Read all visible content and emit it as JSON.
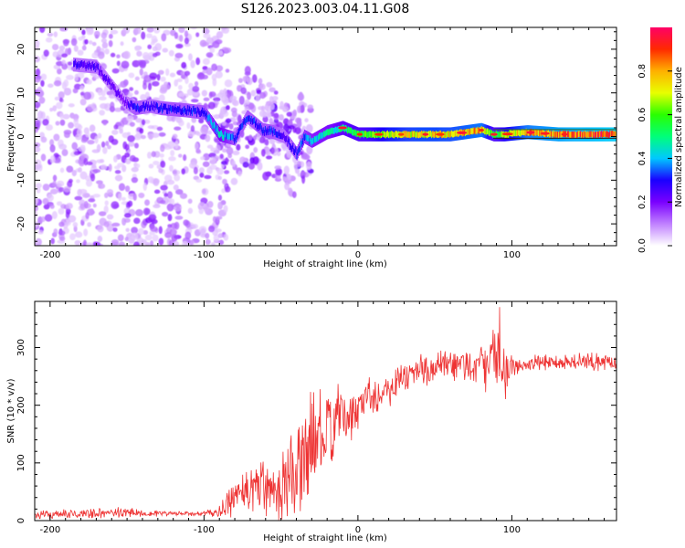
{
  "title": "S126.2023.003.04.11.G08",
  "chart_data": [
    {
      "type": "heatmap",
      "title": "S126.2023.003.04.11.G08",
      "xlabel": "Height of straight line (km)",
      "ylabel": "Frequency (Hz)",
      "xlim": [
        -210,
        168
      ],
      "ylim": [
        -25,
        25
      ],
      "xticks": [
        -200,
        -100,
        0,
        100
      ],
      "xtick_labels": [
        "-200",
        "-100",
        "0",
        "100"
      ],
      "yticks": [
        -20,
        -10,
        0,
        10,
        20
      ],
      "ytick_labels": [
        "-20",
        "-10",
        "0",
        "10",
        "20"
      ],
      "colorbar": {
        "label": "Normalized spectral amplitude",
        "range": [
          0,
          1
        ],
        "ticks": [
          0.0,
          0.2,
          0.4,
          0.6,
          0.8
        ],
        "tick_labels": [
          "0.0",
          "0.2",
          "0.4",
          "0.6",
          "0.8"
        ],
        "colors": [
          "#ffffff",
          "#c080ff",
          "#7a00ff",
          "#1a00ff",
          "#00c8ff",
          "#00ff7a",
          "#2aff00",
          "#e8ff00",
          "#ffb000",
          "#ff2a00",
          "#ff0066"
        ]
      },
      "ridge": {
        "x": [
          -185,
          -170,
          -152,
          -145,
          -135,
          -128,
          -112,
          -100,
          -90,
          -80,
          -72,
          -62,
          -55,
          -48,
          -40,
          -35,
          -30,
          -20,
          -10,
          0,
          20,
          40,
          60,
          80,
          88,
          95,
          110,
          130,
          168
        ],
        "y": [
          16.5,
          16,
          8,
          6.5,
          7,
          6.5,
          6,
          5.5,
          0.5,
          -0.5,
          4.5,
          1.5,
          1,
          0,
          -4,
          0,
          -1,
          1,
          2,
          0.5,
          0.5,
          0.5,
          0.5,
          1.5,
          0.5,
          0.5,
          1,
          0.5,
          0.5
        ],
        "amplitude": [
          0.25,
          0.25,
          0.2,
          0.3,
          0.25,
          0.3,
          0.3,
          0.3,
          0.45,
          0.3,
          0.3,
          0.3,
          0.3,
          0.25,
          0.3,
          0.35,
          0.4,
          0.45,
          0.5,
          0.55,
          0.7,
          0.75,
          0.75,
          0.8,
          0.55,
          0.65,
          0.8,
          0.85,
          0.9
        ]
      },
      "noise_region_km": [
        -210,
        -90
      ]
    },
    {
      "type": "line",
      "xlabel": "Height of straight line (km)",
      "ylabel": "SNR (10 * v/v)",
      "xlim": [
        -210,
        168
      ],
      "ylim": [
        0,
        380
      ],
      "xticks": [
        -200,
        -100,
        0,
        100
      ],
      "xtick_labels": [
        "-200",
        "-100",
        "0",
        "100"
      ],
      "yticks": [
        0,
        100,
        200,
        300
      ],
      "ytick_labels": [
        "0",
        "100",
        "200",
        "300"
      ],
      "line_color": "#ee3333",
      "series": [
        {
          "name": "SNR",
          "x": [
            -210,
            -200,
            -180,
            -160,
            -150,
            -140,
            -120,
            -100,
            -90,
            -85,
            -80,
            -75,
            -70,
            -65,
            -60,
            -55,
            -50,
            -45,
            -40,
            -35,
            -30,
            -25,
            -20,
            -15,
            -10,
            -5,
            0,
            5,
            10,
            15,
            20,
            30,
            40,
            50,
            60,
            70,
            80,
            85,
            90,
            92,
            95,
            100,
            110,
            120,
            140,
            168
          ],
          "values": [
            10,
            10,
            12,
            13,
            15,
            13,
            12,
            12,
            15,
            25,
            40,
            60,
            55,
            60,
            65,
            60,
            55,
            75,
            80,
            100,
            140,
            150,
            140,
            175,
            180,
            175,
            195,
            215,
            225,
            215,
            230,
            250,
            260,
            265,
            265,
            270,
            270,
            265,
            290,
            310,
            260,
            265,
            270,
            275,
            275,
            275
          ],
          "spread": [
            8,
            8,
            10,
            10,
            12,
            8,
            5,
            5,
            12,
            25,
            40,
            50,
            50,
            60,
            70,
            60,
            70,
            80,
            100,
            110,
            100,
            110,
            90,
            70,
            60,
            50,
            45,
            40,
            40,
            40,
            40,
            35,
            35,
            35,
            40,
            40,
            40,
            50,
            90,
            80,
            60,
            20,
            18,
            18,
            18,
            18
          ]
        }
      ]
    }
  ]
}
